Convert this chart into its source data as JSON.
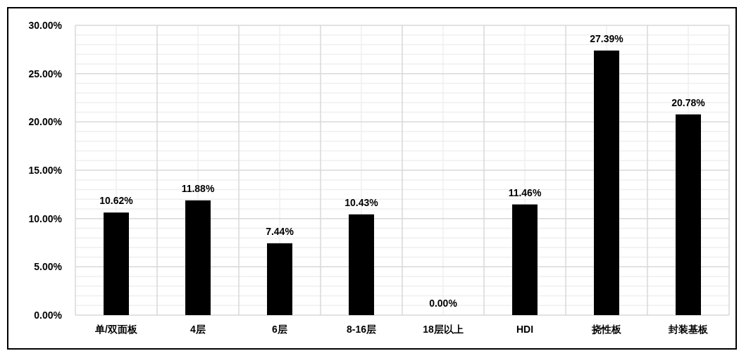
{
  "chart_data": {
    "type": "bar",
    "categories": [
      "单/双面板",
      "4层",
      "6层",
      "8-16层",
      "18层以上",
      "HDI",
      "挠性板",
      "封装基板"
    ],
    "values": [
      10.62,
      11.88,
      7.44,
      10.43,
      0.0,
      11.46,
      27.39,
      20.78
    ],
    "value_labels": [
      "10.62%",
      "11.88%",
      "7.44%",
      "10.43%",
      "0.00%",
      "11.46%",
      "27.39%",
      "20.78%"
    ],
    "color": "#000000",
    "ylim": [
      0,
      30
    ],
    "yticks": [
      {
        "value": 0,
        "label": "0.00%"
      },
      {
        "value": 5,
        "label": "5.00%"
      },
      {
        "value": 10,
        "label": "10.00%"
      },
      {
        "value": 15,
        "label": "15.00%"
      },
      {
        "value": 20,
        "label": "20.00%"
      },
      {
        "value": 25,
        "label": "25.00%"
      },
      {
        "value": 30,
        "label": "30.00%"
      }
    ],
    "grid": true
  }
}
